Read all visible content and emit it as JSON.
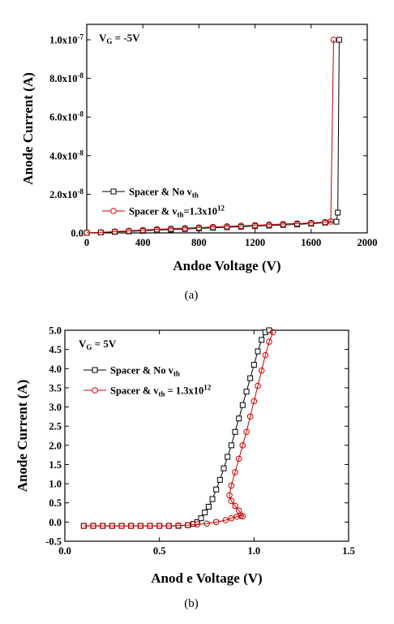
{
  "chart_data": [
    {
      "type": "line",
      "caption": "(a)",
      "xlabel": "Andoe Voltage (V)",
      "ylabel": "Anode Current (A)",
      "xlim": [
        0,
        2000
      ],
      "ylim": [
        0,
        1.08e-07
      ],
      "x_ticks": [
        {
          "value": 0,
          "label": "0"
        },
        {
          "value": 400,
          "label": "400"
        },
        {
          "value": 800,
          "label": "800"
        },
        {
          "value": 1200,
          "label": "1200"
        },
        {
          "value": 1600,
          "label": "1600"
        },
        {
          "value": 2000,
          "label": "2000"
        }
      ],
      "y_ticks": [
        {
          "value": 0,
          "base": "0.0",
          "exp": ""
        },
        {
          "value": 2e-08,
          "base": "2.0x10",
          "exp": "-8"
        },
        {
          "value": 4e-08,
          "base": "4.0x10",
          "exp": "-8"
        },
        {
          "value": 6e-08,
          "base": "6.0x10",
          "exp": "-8"
        },
        {
          "value": 8e-08,
          "base": "8.0x10",
          "exp": "-8"
        },
        {
          "value": 1e-07,
          "base": "1.0x10",
          "exp": "-7"
        }
      ],
      "annotation": {
        "main": "V",
        "sub": "G",
        "rest": " = -5V"
      },
      "legend_position": "lower-left",
      "series": [
        {
          "legend": {
            "main": "Spacer & No v",
            "sub": "th",
            "rest": "",
            "sup": ""
          },
          "marker": "square",
          "color": "#000000",
          "x": [
            0,
            100,
            200,
            300,
            400,
            500,
            600,
            700,
            800,
            900,
            1000,
            1100,
            1200,
            1300,
            1400,
            1500,
            1600,
            1700,
            1780,
            1790,
            1800
          ],
          "y": [
            0,
            2e-10,
            5e-10,
            8e-10,
            1.1e-09,
            1.4e-09,
            1.7e-09,
            2e-09,
            2.3e-09,
            2.6e-09,
            2.9e-09,
            3.2e-09,
            3.5e-09,
            3.8e-09,
            4.1e-09,
            4.4e-09,
            4.8e-09,
            5.3e-09,
            5.8e-09,
            1.05e-08,
            1e-07
          ]
        },
        {
          "legend": {
            "main": "Spacer & v",
            "sub": "th",
            "rest": "=1.3x10",
            "sup": "12"
          },
          "marker": "circle",
          "color": "#cc0000",
          "x": [
            0,
            100,
            200,
            300,
            400,
            500,
            600,
            700,
            800,
            900,
            1000,
            1100,
            1200,
            1300,
            1400,
            1500,
            1600,
            1700,
            1740,
            1760
          ],
          "y": [
            0,
            3e-10,
            7e-10,
            1.1e-09,
            1.5e-09,
            1.9e-09,
            2.2e-09,
            2.5e-09,
            2.8e-09,
            3.1e-09,
            3.4e-09,
            3.7e-09,
            4e-09,
            4.3e-09,
            4.6e-09,
            4.9e-09,
            5.2e-09,
            5.6e-09,
            5.9e-09,
            1e-07
          ]
        }
      ]
    },
    {
      "type": "line",
      "caption": "(b)",
      "xlabel": "Anod e Voltage (V)",
      "ylabel": "Anode Current (A)",
      "xlim": [
        0,
        1.5
      ],
      "ylim": [
        -0.5,
        5.0
      ],
      "x_ticks": [
        {
          "value": 0,
          "label": "0.0"
        },
        {
          "value": 0.5,
          "label": "0.5"
        },
        {
          "value": 1.0,
          "label": "1.0"
        },
        {
          "value": 1.5,
          "label": "1.5"
        }
      ],
      "y_ticks": [
        {
          "value": -0.5,
          "base": "-0.5",
          "exp": ""
        },
        {
          "value": 0,
          "base": "0.0",
          "exp": ""
        },
        {
          "value": 0.5,
          "base": "0.5",
          "exp": ""
        },
        {
          "value": 1.0,
          "base": "1.0",
          "exp": ""
        },
        {
          "value": 1.5,
          "base": "1.5",
          "exp": ""
        },
        {
          "value": 2.0,
          "base": "2.0",
          "exp": ""
        },
        {
          "value": 2.5,
          "base": "2.5",
          "exp": ""
        },
        {
          "value": 3.0,
          "base": "3.0",
          "exp": ""
        },
        {
          "value": 3.5,
          "base": "3.5",
          "exp": ""
        },
        {
          "value": 4.0,
          "base": "4.0",
          "exp": ""
        },
        {
          "value": 4.5,
          "base": "4.5",
          "exp": ""
        },
        {
          "value": 5.0,
          "base": "5.0",
          "exp": ""
        }
      ],
      "annotation": {
        "main": "V",
        "sub": "G",
        "rest": " = 5V"
      },
      "legend_position": "top-left",
      "series": [
        {
          "legend": {
            "main": "Spacer & No v",
            "sub": "th",
            "rest": "",
            "sup": ""
          },
          "marker": "square",
          "color": "#000000",
          "x": [
            0.1,
            0.15,
            0.2,
            0.25,
            0.3,
            0.35,
            0.4,
            0.45,
            0.5,
            0.55,
            0.6,
            0.65,
            0.68,
            0.7,
            0.72,
            0.74,
            0.76,
            0.78,
            0.8,
            0.82,
            0.84,
            0.86,
            0.88,
            0.9,
            0.92,
            0.94,
            0.96,
            0.98,
            1.0,
            1.02,
            1.04,
            1.06,
            1.08
          ],
          "y": [
            -0.1,
            -0.1,
            -0.1,
            -0.1,
            -0.1,
            -0.1,
            -0.1,
            -0.1,
            -0.1,
            -0.1,
            -0.1,
            -0.08,
            -0.05,
            0.0,
            0.1,
            0.25,
            0.4,
            0.6,
            0.85,
            1.1,
            1.4,
            1.7,
            2.0,
            2.35,
            2.7,
            3.05,
            3.4,
            3.75,
            4.1,
            4.45,
            4.75,
            4.95,
            5.0
          ]
        },
        {
          "legend": {
            "main": "Spacer & v",
            "sub": "th",
            "rest": " = 1.3x10",
            "sup": "12"
          },
          "marker": "circle",
          "color": "#cc0000",
          "x": [
            0.1,
            0.15,
            0.2,
            0.25,
            0.3,
            0.35,
            0.4,
            0.45,
            0.5,
            0.55,
            0.6,
            0.65,
            0.7,
            0.75,
            0.8,
            0.85,
            0.88,
            0.91,
            0.93,
            0.94,
            0.92,
            0.9,
            0.88,
            0.87,
            0.88,
            0.9,
            0.92,
            0.94,
            0.96,
            0.98,
            1.0,
            1.02,
            1.04,
            1.06,
            1.08,
            1.1
          ],
          "y": [
            -0.1,
            -0.1,
            -0.1,
            -0.1,
            -0.1,
            -0.1,
            -0.1,
            -0.1,
            -0.1,
            -0.1,
            -0.09,
            -0.08,
            -0.06,
            -0.04,
            0.0,
            0.05,
            0.1,
            0.14,
            0.17,
            0.15,
            0.3,
            0.42,
            0.55,
            0.7,
            0.95,
            1.3,
            1.65,
            2.0,
            2.35,
            2.75,
            3.15,
            3.55,
            3.95,
            4.35,
            4.7,
            4.95
          ]
        }
      ]
    }
  ]
}
